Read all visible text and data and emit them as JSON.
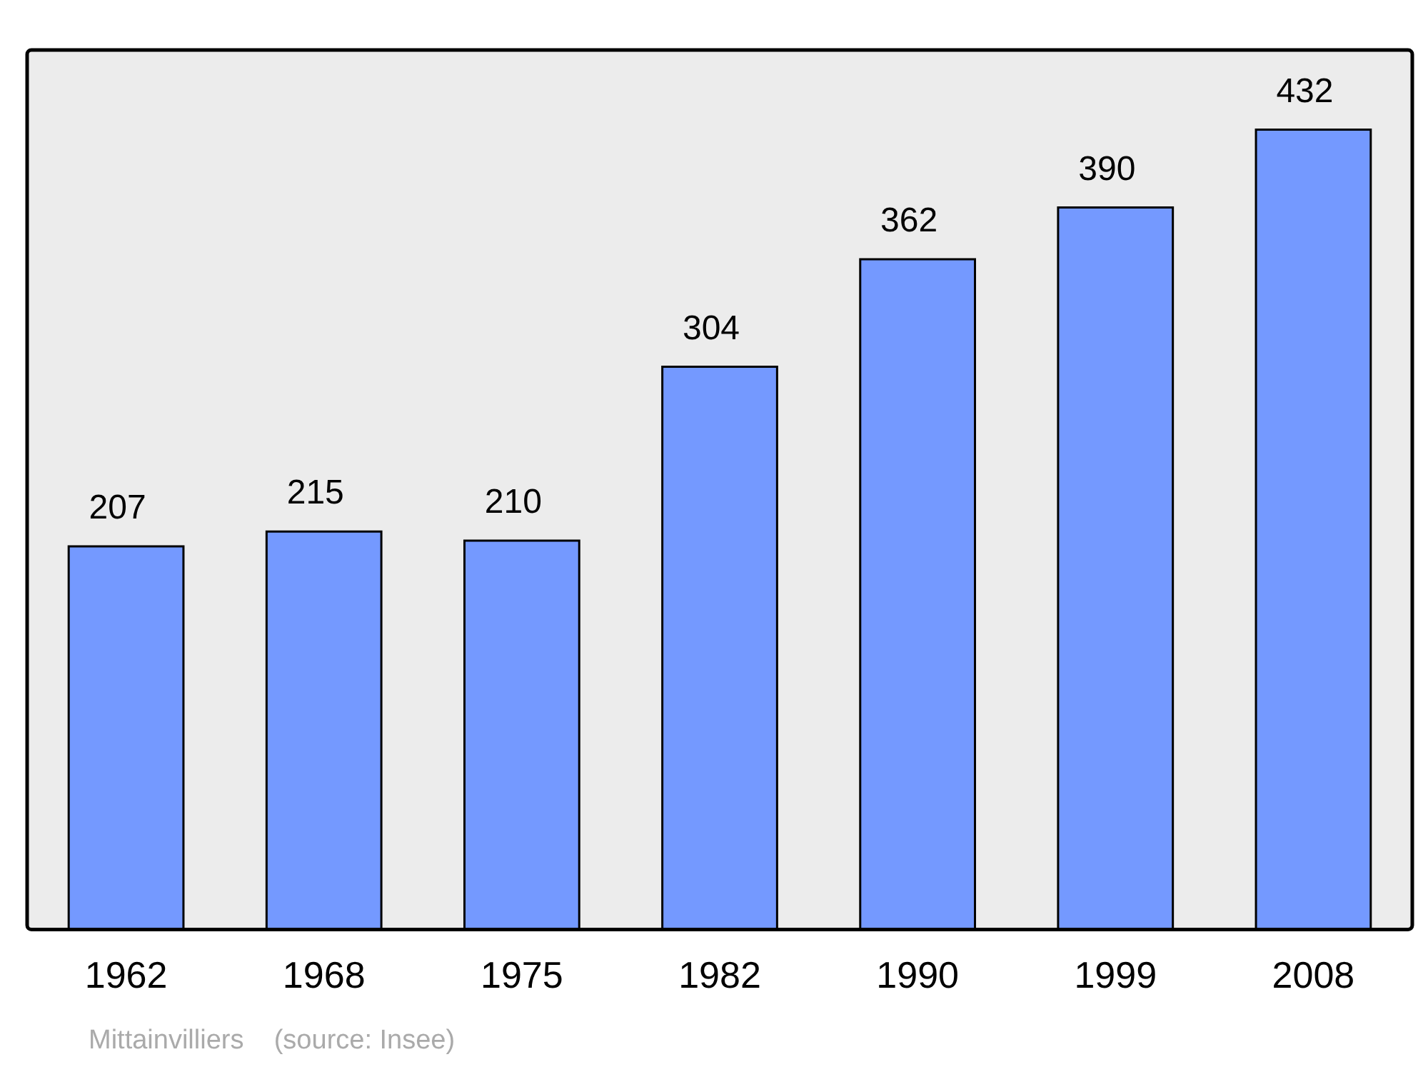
{
  "chart_data": {
    "type": "bar",
    "categories": [
      "1962",
      "1968",
      "1975",
      "1982",
      "1990",
      "1999",
      "2008"
    ],
    "values": [
      207,
      215,
      210,
      304,
      362,
      390,
      432
    ],
    "color": "#7499ff",
    "ylim": [
      0,
      475
    ],
    "relative": false,
    "data_labels": true,
    "grid": false,
    "legend": false,
    "annotations": [
      "Mittainvilliers    (source: Insee)"
    ]
  }
}
